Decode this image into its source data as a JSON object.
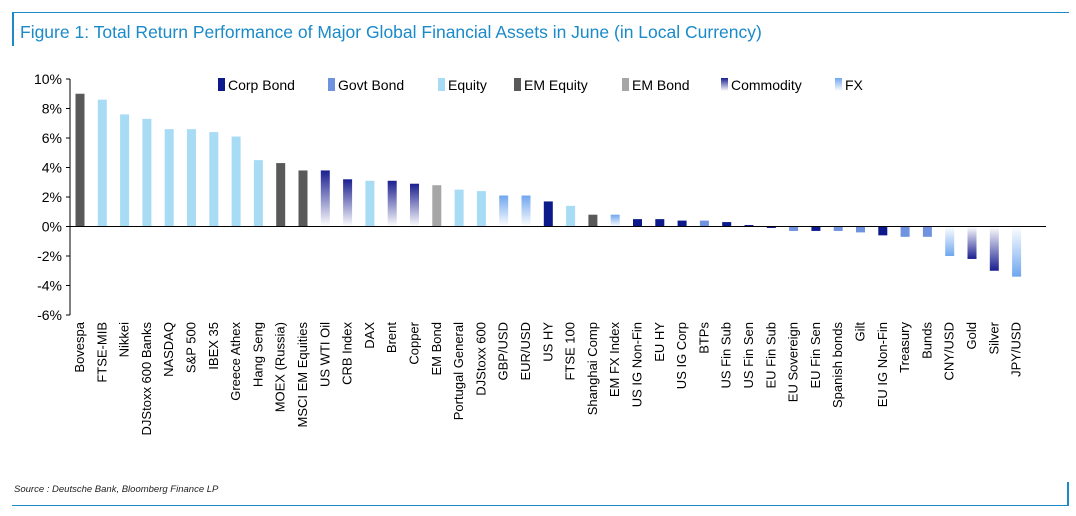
{
  "title": "Figure 1: Total Return Performance of Major Global Financial Assets in June (in Local Currency)",
  "source": "Source : Deutsche Bank, Bloomberg Finance LP",
  "colors": {
    "Corp Bond": "#0c1a8c",
    "Govt Bond": "#6f93df",
    "Equity": "#a8dcf4",
    "EM Equity": "#595959",
    "EM Bond": "#a6a6a6",
    "Commodity": "#1a1f8f",
    "FX": "#7fb3f0",
    "frame": "#1a8ac9"
  },
  "chart_data": {
    "type": "bar",
    "title": "Figure 1: Total Return Performance of Major Global Financial Assets in June (in Local Currency)",
    "ylim": [
      -6,
      10
    ],
    "yticks": [
      -6,
      -4,
      -2,
      0,
      2,
      4,
      6,
      8,
      10
    ],
    "ytick_labels": [
      "-6%",
      "-4%",
      "-2%",
      "0%",
      "2%",
      "4%",
      "6%",
      "8%",
      "10%"
    ],
    "legend_position": "top",
    "legend": [
      "Corp Bond",
      "Govt Bond",
      "Equity",
      "EM Equity",
      "EM Bond",
      "Commodity",
      "FX"
    ],
    "categories": [
      "Bovespa",
      "FTSE-MIB",
      "Nikkei",
      "DJStoxx 600 Banks",
      "NASDAQ",
      "S&P 500",
      "IBEX 35",
      "Greece Athex",
      "Hang Seng",
      "MOEX (Russia)",
      "MSCI EM Equities",
      "US WTI Oil",
      "CRB Index",
      "DAX",
      "Brent",
      "Copper",
      "EM Bond",
      "Portugal General",
      "DJStoxx 600",
      "GBP/USD",
      "EUR/USD",
      "US HY",
      "FTSE 100",
      "Shanghai Comp",
      "EM FX Index",
      "US IG Non-Fin",
      "EU HY",
      "US IG Corp",
      "BTPs",
      "US Fin Sub",
      "US Fin Sen",
      "EU Fin Sub",
      "EU Sovereign",
      "EU Fin Sen",
      "Spanish bonds",
      "Gilt",
      "EU IG Non-Fin",
      "Treasury",
      "Bunds",
      "CNY/USD",
      "Gold",
      "Silver",
      "JPY/USD"
    ],
    "values": [
      9.0,
      8.6,
      7.6,
      7.3,
      6.6,
      6.6,
      6.4,
      6.1,
      4.5,
      4.3,
      3.8,
      3.8,
      3.2,
      3.1,
      3.1,
      2.9,
      2.8,
      2.5,
      2.4,
      2.1,
      2.1,
      1.7,
      1.4,
      0.8,
      0.8,
      0.5,
      0.5,
      0.4,
      0.4,
      0.3,
      0.1,
      -0.1,
      -0.3,
      -0.3,
      -0.3,
      -0.4,
      -0.6,
      -0.7,
      -0.7,
      -2.0,
      -2.2,
      -3.0,
      -3.4
    ],
    "asset_class": [
      "EM Equity",
      "Equity",
      "Equity",
      "Equity",
      "Equity",
      "Equity",
      "Equity",
      "Equity",
      "Equity",
      "EM Equity",
      "EM Equity",
      "Commodity",
      "Commodity",
      "Equity",
      "Commodity",
      "Commodity",
      "EM Bond",
      "Equity",
      "Equity",
      "FX",
      "FX",
      "Corp Bond",
      "Equity",
      "EM Equity",
      "FX",
      "Corp Bond",
      "Corp Bond",
      "Corp Bond",
      "Govt Bond",
      "Corp Bond",
      "Corp Bond",
      "Corp Bond",
      "Govt Bond",
      "Corp Bond",
      "Govt Bond",
      "Govt Bond",
      "Corp Bond",
      "Govt Bond",
      "Govt Bond",
      "FX",
      "Commodity",
      "Commodity",
      "FX"
    ]
  }
}
